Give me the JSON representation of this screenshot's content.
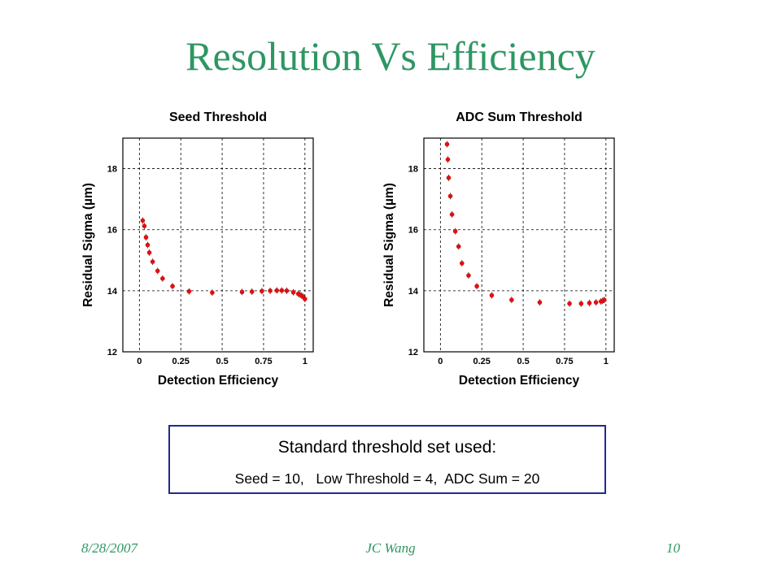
{
  "slide": {
    "title": "Resolution Vs Efficiency",
    "footer_date": "8/28/2007",
    "footer_author": "JC Wang",
    "footer_page": "10"
  },
  "info": {
    "heading": "Standard threshold set used:",
    "detail": "Seed = 10,   Low Threshold = 4,  ADC Sum = 20"
  },
  "colors": {
    "title": "#2e9663",
    "markers": "#e01010",
    "box_border": "#1f2b8f"
  },
  "chart_data": [
    {
      "type": "scatter",
      "title": "Seed Threshold",
      "xlabel": "Detection Efficiency",
      "ylabel": "Residual Sigma (µm)",
      "xlim": [
        -0.1,
        1.05
      ],
      "ylim": [
        12,
        19
      ],
      "xticks": [
        0,
        0.25,
        0.5,
        0.75,
        1
      ],
      "xtick_labels": [
        "0",
        "0.25",
        "0.5",
        "0.75",
        "1"
      ],
      "yticks": [
        12,
        14,
        16,
        18
      ],
      "ytick_labels": [
        "12",
        "14",
        "16",
        "18"
      ],
      "grid": true,
      "x": [
        0.02,
        0.03,
        0.04,
        0.05,
        0.06,
        0.08,
        0.11,
        0.14,
        0.2,
        0.3,
        0.44,
        0.62,
        0.68,
        0.74,
        0.79,
        0.83,
        0.86,
        0.89,
        0.93,
        0.96,
        0.97,
        0.98,
        0.99,
        1.0
      ],
      "y": [
        16.3,
        16.12,
        15.75,
        15.5,
        15.25,
        14.95,
        14.65,
        14.4,
        14.15,
        13.98,
        13.94,
        13.96,
        13.97,
        13.99,
        14.0,
        14.01,
        14.01,
        14.0,
        13.95,
        13.9,
        13.87,
        13.84,
        13.8,
        13.73
      ]
    },
    {
      "type": "scatter",
      "title": "ADC Sum Threshold",
      "xlabel": "Detection Efficiency",
      "ylabel": "Residual Sigma (µm)",
      "xlim": [
        -0.1,
        1.05
      ],
      "ylim": [
        12,
        19
      ],
      "xticks": [
        0,
        0.25,
        0.5,
        0.75,
        1
      ],
      "xtick_labels": [
        "0",
        "0.25",
        "0.5",
        "0.75",
        "1"
      ],
      "yticks": [
        12,
        14,
        16,
        18
      ],
      "ytick_labels": [
        "12",
        "14",
        "16",
        "18"
      ],
      "grid": true,
      "x": [
        0.04,
        0.045,
        0.05,
        0.06,
        0.07,
        0.09,
        0.11,
        0.13,
        0.17,
        0.22,
        0.31,
        0.43,
        0.6,
        0.78,
        0.85,
        0.9,
        0.94,
        0.97,
        0.98,
        0.99
      ],
      "y": [
        18.8,
        18.3,
        17.7,
        17.1,
        16.5,
        15.95,
        15.45,
        14.9,
        14.5,
        14.15,
        13.85,
        13.7,
        13.62,
        13.58,
        13.58,
        13.6,
        13.62,
        13.65,
        13.67,
        13.7
      ]
    }
  ]
}
